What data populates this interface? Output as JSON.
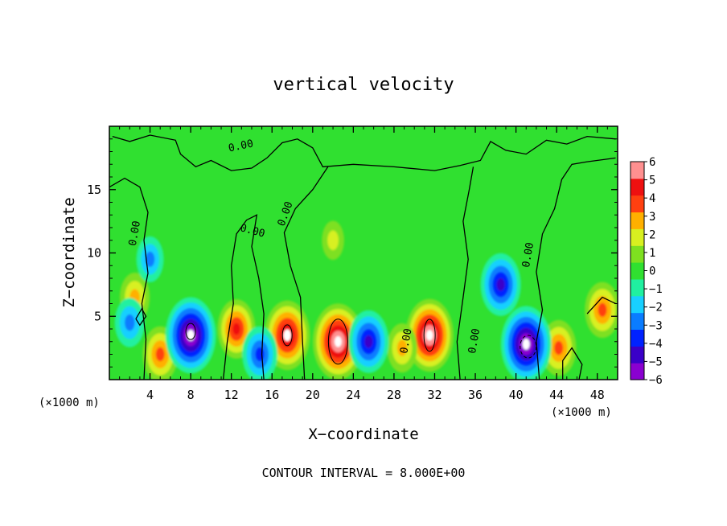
{
  "chart_data": {
    "type": "heatmap",
    "title": "vertical velocity",
    "xlabel": "X−coordinate",
    "ylabel": "Z−coordinate",
    "x_unit_left": "(×1000 m)",
    "x_unit_right": "(×1000 m)",
    "footer": "CONTOUR INTERVAL = 8.000E+00",
    "xlim": [
      0,
      50
    ],
    "ylim": [
      0,
      20
    ],
    "x_ticks": [
      4,
      8,
      12,
      16,
      20,
      24,
      28,
      32,
      36,
      40,
      44,
      48
    ],
    "x_tick_labels": [
      "4",
      "8",
      "12",
      "16",
      "20",
      "24",
      "28",
      "32",
      "36",
      "40",
      "44",
      "48"
    ],
    "y_ticks": [
      5,
      10,
      15
    ],
    "y_tick_labels": [
      "5",
      "10",
      "15"
    ],
    "colorbar": {
      "min": -6,
      "max": 6,
      "tick_values": [
        6,
        5,
        4,
        3,
        2,
        1,
        0,
        -1,
        -2,
        -3,
        -4,
        -5,
        -6
      ],
      "tick_labels": [
        "6",
        "5",
        "4",
        "3",
        "2",
        "1",
        "0",
        "−1",
        "−2",
        "−3",
        "−4",
        "−5",
        "−6"
      ],
      "colors": [
        "#8a00d0",
        "#3a00c8",
        "#0022ff",
        "#0a7cff",
        "#18d0ff",
        "#20f0a0",
        "#30e030",
        "#7ee020",
        "#d8f020",
        "#ffb000",
        "#ff4010",
        "#ee1010",
        "#ff9090"
      ]
    },
    "contour_label": "0.00",
    "features": [
      {
        "sign": "positive",
        "x": 22.5,
        "z": 3.0,
        "peak": 7
      },
      {
        "sign": "positive",
        "x": 31.5,
        "z": 3.5,
        "peak": 6.5
      },
      {
        "sign": "positive",
        "x": 17.5,
        "z": 3.5,
        "peak": 6
      },
      {
        "sign": "positive",
        "x": 12.5,
        "z": 4.0,
        "peak": 4.5
      },
      {
        "sign": "positive",
        "x": 5.0,
        "z": 2.0,
        "peak": 4
      },
      {
        "sign": "positive",
        "x": 2.5,
        "z": 6.5,
        "peak": 3
      },
      {
        "sign": "positive",
        "x": 44.2,
        "z": 2.5,
        "peak": 4
      },
      {
        "sign": "positive",
        "x": 48.5,
        "z": 5.5,
        "peak": 4
      },
      {
        "sign": "positive",
        "x": 28.8,
        "z": 2.5,
        "peak": 3
      },
      {
        "sign": "positive",
        "x": 22.0,
        "z": 11.0,
        "peak": 1.5
      },
      {
        "sign": "negative",
        "x": 8.0,
        "z": 3.5,
        "peak": -7
      },
      {
        "sign": "negative",
        "x": 41.0,
        "z": 2.8,
        "peak": -7
      },
      {
        "sign": "negative",
        "x": 38.5,
        "z": 7.5,
        "peak": -5
      },
      {
        "sign": "negative",
        "x": 4.0,
        "z": 9.5,
        "peak": -2.5
      },
      {
        "sign": "negative",
        "x": 25.5,
        "z": 3.0,
        "peak": -5
      },
      {
        "sign": "negative",
        "x": 14.8,
        "z": 2.0,
        "peak": -4
      },
      {
        "sign": "negative",
        "x": 2.0,
        "z": 4.5,
        "peak": -3
      }
    ]
  }
}
